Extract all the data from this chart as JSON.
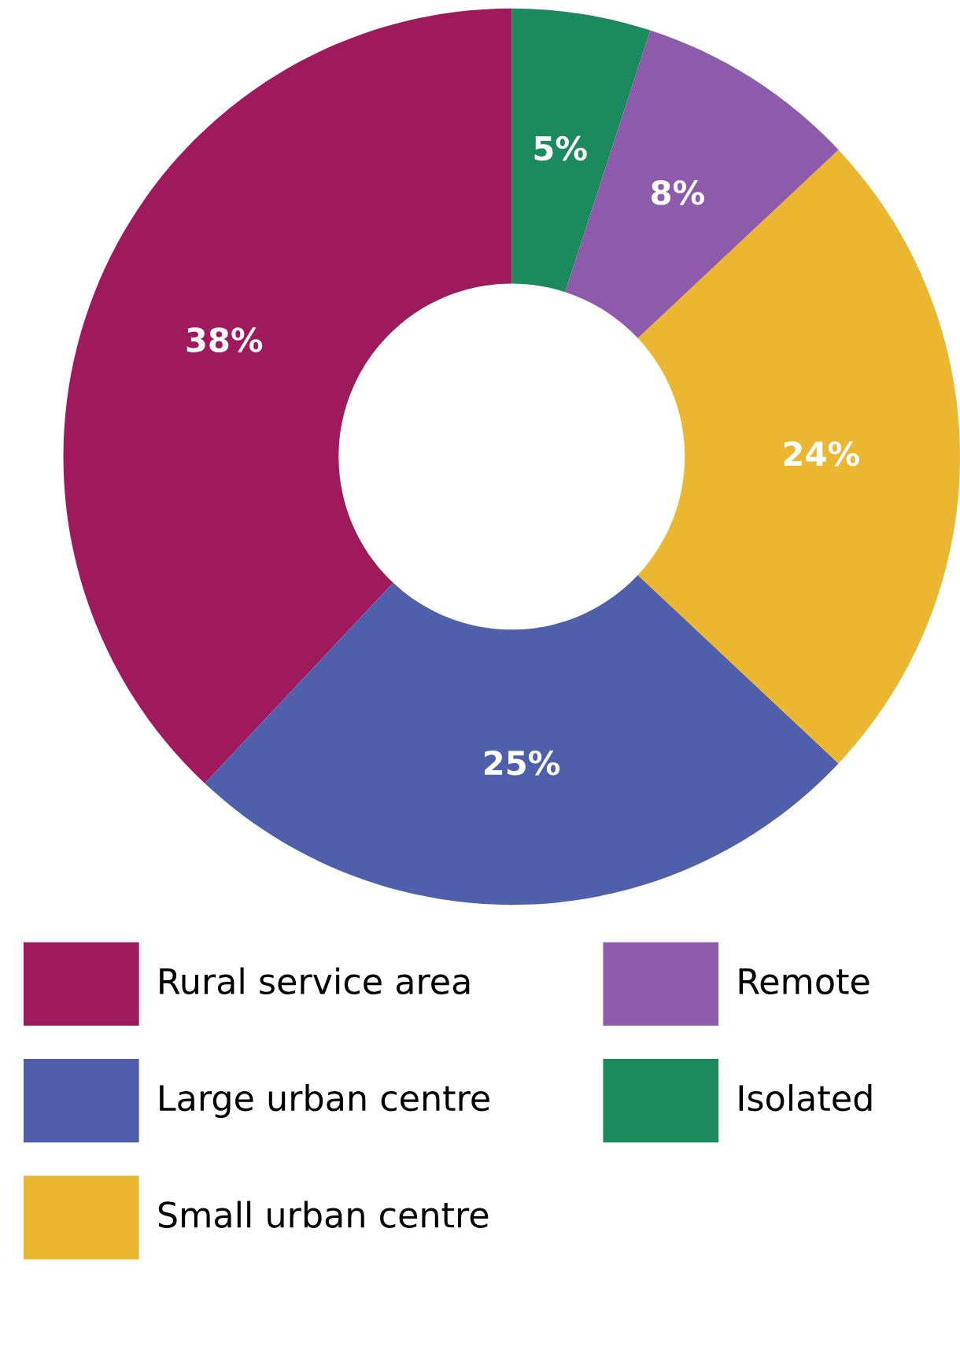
{
  "chart_data": {
    "type": "donut",
    "categories": [
      "Rural service area",
      "Large urban centre",
      "Small urban centre",
      "Remote",
      "Isolated"
    ],
    "values": [
      38,
      25,
      24,
      8,
      5
    ],
    "value_labels": [
      "38%",
      "25%",
      "24%",
      "8%",
      "5%"
    ],
    "colors": [
      "#9e1a5c",
      "#4f5fab",
      "#ebb731",
      "#8e5aab",
      "#1b8a5e"
    ],
    "legend": "bottom"
  }
}
